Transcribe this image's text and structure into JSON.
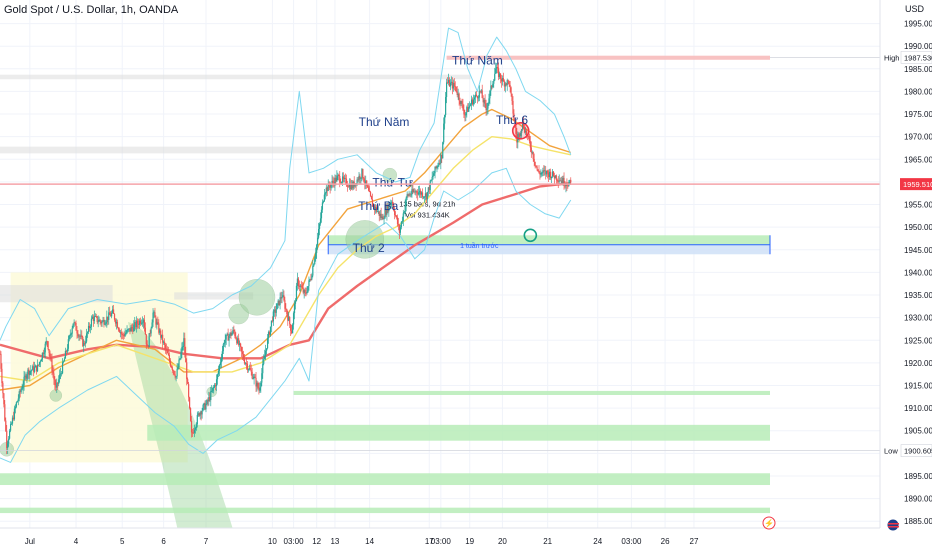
{
  "header": {
    "symbol_title": "Gold Spot / U.S. Dollar, 1h, OANDA",
    "currency": "USD"
  },
  "colors": {
    "up": "#26a69a",
    "down": "#ef5350",
    "ma_slow": "#ef6b6b",
    "ma_mid": "#f2a33c",
    "ma_fast": "#f5e36a",
    "bollinger": "#7fd8f0",
    "support_zone": "#b7ecb7",
    "grey_zone": "#dcdcdc",
    "range_box": "#cfe0f7",
    "price_tag": "#f23645"
  },
  "chart_data": {
    "type": "candlestick",
    "y_axis": {
      "ticks": [
        "1995.000",
        "1990.000",
        "1985.000",
        "1980.000",
        "1975.000",
        "1970.000",
        "1965.000",
        "1960.000",
        "1955.000",
        "1950.000",
        "1945.000",
        "1940.000",
        "1935.000",
        "1930.000",
        "1925.000",
        "1920.000",
        "1915.000",
        "1910.000",
        "1905.000",
        "1900.000",
        "1895.000",
        "1890.000",
        "1885.000"
      ],
      "ylim": [
        1883.5,
        1998
      ]
    },
    "x_axis": {
      "ticks": [
        "Jul",
        "4",
        "5",
        "6",
        "7",
        "10",
        "03:00",
        "12",
        "13",
        "14",
        "17",
        "03:00",
        "19",
        "20",
        "21",
        "24",
        "03:00",
        "26",
        "27"
      ],
      "tick_times": [
        0,
        48,
        96,
        139,
        183,
        252,
        274,
        298,
        317,
        353,
        415,
        427,
        457,
        491,
        538,
        590,
        625,
        660,
        690
      ],
      "xlim": [
        -31,
        769
      ]
    },
    "price_labels": {
      "high_label": "High",
      "high_value": "1987.530",
      "high": 1987.53,
      "low_label": "Low",
      "low_value": "1900.605",
      "low": 1900.605,
      "last_value": "1959.510",
      "last": 1959.51
    },
    "annotations": [
      {
        "text": "Thứ 2",
        "t": 352,
        "price": 1944.5
      },
      {
        "text": "Thứ Ba",
        "t": 362,
        "price": 1953.8
      },
      {
        "text": "Thứ Tư",
        "t": 377,
        "price": 1959.0
      },
      {
        "text": "Thứ Năm",
        "t": 368,
        "price": 1972.4
      },
      {
        "text": "Thứ Năm",
        "t": 465,
        "price": 1986.0
      },
      {
        "text": "Thứ 6",
        "t": 501,
        "price": 1972.8
      }
    ],
    "range_measure": {
      "line1": "135 bars, 9d 21h",
      "line2": "Vol 931.434K",
      "sub_label": "1 tuần trước",
      "t_start": 310,
      "t_end": 769,
      "price_top": 1948.2,
      "price_bottom": 1944.0
    },
    "zones": [
      {
        "kind": "support",
        "t_start": 274,
        "price_top": 1913.8,
        "price_bottom": 1912.9
      },
      {
        "kind": "support",
        "t_start": 122,
        "price_top": 1906.3,
        "price_bottom": 1902.8
      },
      {
        "kind": "support",
        "t_start": -31,
        "price_top": 1895.6,
        "price_bottom": 1893.0
      },
      {
        "kind": "support",
        "t_start": -31,
        "price_top": 1888.0,
        "price_bottom": 1886.8
      },
      {
        "kind": "resistance",
        "t_start": 433,
        "price_top": 1987.9,
        "price_bottom": 1987.0
      },
      {
        "kind": "grey",
        "t_start": -31,
        "t_end": 458,
        "price_top": 1983.7,
        "price_bottom": 1982.7
      },
      {
        "kind": "grey",
        "t_start": -31,
        "t_end": 458,
        "price_top": 1967.8,
        "price_bottom": 1966.3
      },
      {
        "kind": "grey",
        "t_start": -31,
        "t_end": 86,
        "price_top": 1937.2,
        "price_bottom": 1933.4
      },
      {
        "kind": "grey",
        "t_start": 150,
        "t_end": 232,
        "price_top": 1935.6,
        "price_bottom": 1934.0
      }
    ],
    "highlight_box": {
      "t_start": -20,
      "t_end": 164,
      "price_top": 1940.0,
      "price_bottom": 1898.0
    },
    "circles": [
      {
        "t": -24,
        "price": 1900.9,
        "r": 7
      },
      {
        "t": 27,
        "price": 1912.8,
        "r": 6
      },
      {
        "t": 189,
        "price": 1913.6,
        "r": 5
      },
      {
        "t": 217,
        "price": 1930.8,
        "r": 10
      },
      {
        "t": 236,
        "price": 1934.5,
        "r": 18
      },
      {
        "t": 348,
        "price": 1947.3,
        "r": 19
      },
      {
        "t": 374,
        "price": 1961.5,
        "r": 7
      }
    ],
    "marker_circles": [
      {
        "t": 510,
        "price": 1971.3,
        "r": 8,
        "color": "red"
      },
      {
        "t": 520,
        "price": 1948.2,
        "r": 6,
        "color": "green"
      }
    ],
    "candle_anchors": [
      [
        -31,
        1922
      ],
      [
        -24,
        1902
      ],
      [
        -14,
        1911
      ],
      [
        -3,
        1918
      ],
      [
        8,
        1919
      ],
      [
        18,
        1925
      ],
      [
        27,
        1914
      ],
      [
        35,
        1920
      ],
      [
        45,
        1929
      ],
      [
        56,
        1924
      ],
      [
        65,
        1930
      ],
      [
        75,
        1929
      ],
      [
        86,
        1931
      ],
      [
        96,
        1926
      ],
      [
        108,
        1928
      ],
      [
        118,
        1930
      ],
      [
        122,
        1923
      ],
      [
        128,
        1931
      ],
      [
        136,
        1926
      ],
      [
        146,
        1920
      ],
      [
        152,
        1917
      ],
      [
        160,
        1925
      ],
      [
        168,
        1904
      ],
      [
        176,
        1909
      ],
      [
        184,
        1911
      ],
      [
        194,
        1916
      ],
      [
        202,
        1925
      ],
      [
        212,
        1927
      ],
      [
        222,
        1921
      ],
      [
        232,
        1917
      ],
      [
        238,
        1914
      ],
      [
        246,
        1924
      ],
      [
        252,
        1930
      ],
      [
        262,
        1935
      ],
      [
        272,
        1927
      ],
      [
        278,
        1938
      ],
      [
        286,
        1935
      ],
      [
        292,
        1939
      ],
      [
        298,
        1946
      ],
      [
        306,
        1958
      ],
      [
        320,
        1961
      ],
      [
        335,
        1959
      ],
      [
        345,
        1962
      ],
      [
        356,
        1955
      ],
      [
        366,
        1952
      ],
      [
        376,
        1956
      ],
      [
        384,
        1949
      ],
      [
        392,
        1957
      ],
      [
        402,
        1958
      ],
      [
        412,
        1957
      ],
      [
        420,
        1962
      ],
      [
        428,
        1966
      ],
      [
        433,
        1982
      ],
      [
        442,
        1981
      ],
      [
        452,
        1975
      ],
      [
        460,
        1978
      ],
      [
        468,
        1980
      ],
      [
        474,
        1976
      ],
      [
        484,
        1985
      ],
      [
        492,
        1982
      ],
      [
        498,
        1982
      ],
      [
        506,
        1969
      ],
      [
        512,
        1973
      ],
      [
        520,
        1968
      ],
      [
        528,
        1962
      ],
      [
        538,
        1962
      ],
      [
        548,
        1961
      ],
      [
        555,
        1960
      ],
      [
        562,
        1959.5
      ]
    ],
    "series": [
      {
        "name": "",
        "style": "ma_slow",
        "points": [
          [
            -31,
            1924
          ],
          [
            20,
            1921
          ],
          [
            60,
            1923
          ],
          [
            90,
            1924
          ],
          [
            130,
            1923.5
          ],
          [
            160,
            1922
          ],
          [
            200,
            1921
          ],
          [
            240,
            1921
          ],
          [
            270,
            1924
          ],
          [
            290,
            1925
          ],
          [
            310,
            1932
          ],
          [
            340,
            1937
          ],
          [
            360,
            1940
          ],
          [
            400,
            1946
          ],
          [
            440,
            1951
          ],
          [
            470,
            1955
          ],
          [
            500,
            1957
          ],
          [
            530,
            1959
          ],
          [
            560,
            1959.7
          ],
          [
            562,
            1959.6
          ]
        ]
      },
      {
        "name": "",
        "style": "ma_mid",
        "points": [
          [
            -31,
            1914
          ],
          [
            0,
            1915
          ],
          [
            30,
            1919
          ],
          [
            60,
            1922
          ],
          [
            90,
            1925
          ],
          [
            130,
            1923
          ],
          [
            160,
            1918
          ],
          [
            190,
            1918
          ],
          [
            220,
            1921
          ],
          [
            240,
            1924
          ],
          [
            260,
            1928
          ],
          [
            280,
            1935
          ],
          [
            300,
            1946
          ],
          [
            330,
            1954
          ],
          [
            360,
            1956
          ],
          [
            390,
            1958
          ],
          [
            410,
            1962
          ],
          [
            430,
            1967
          ],
          [
            450,
            1972
          ],
          [
            470,
            1975
          ],
          [
            480,
            1976
          ],
          [
            500,
            1974
          ],
          [
            520,
            1971
          ],
          [
            540,
            1968
          ],
          [
            562,
            1966.5
          ]
        ]
      },
      {
        "name": "",
        "style": "ma_fast",
        "points": [
          [
            -31,
            1917
          ],
          [
            0,
            1916
          ],
          [
            30,
            1920
          ],
          [
            60,
            1922
          ],
          [
            90,
            1924
          ],
          [
            130,
            1921
          ],
          [
            170,
            1918
          ],
          [
            210,
            1918
          ],
          [
            240,
            1920
          ],
          [
            270,
            1924
          ],
          [
            300,
            1935
          ],
          [
            320,
            1941
          ],
          [
            340,
            1945
          ],
          [
            360,
            1948
          ],
          [
            380,
            1950
          ],
          [
            400,
            1953
          ],
          [
            420,
            1958
          ],
          [
            440,
            1963
          ],
          [
            460,
            1967
          ],
          [
            480,
            1970
          ],
          [
            500,
            1969.5
          ],
          [
            520,
            1968
          ],
          [
            540,
            1967
          ],
          [
            562,
            1966
          ]
        ]
      },
      {
        "name": "",
        "style": "bollinger",
        "points": [
          [
            -31,
            1925
          ],
          [
            -25,
            1928
          ],
          [
            -10,
            1934
          ],
          [
            5,
            1932
          ],
          [
            20,
            1926
          ],
          [
            40,
            1932
          ],
          [
            70,
            1934
          ],
          [
            100,
            1933
          ],
          [
            130,
            1934
          ],
          [
            150,
            1933
          ],
          [
            170,
            1931
          ],
          [
            190,
            1932
          ],
          [
            210,
            1935
          ],
          [
            230,
            1937
          ],
          [
            250,
            1941
          ],
          [
            265,
            1947
          ],
          [
            270,
            1963
          ],
          [
            280,
            1980
          ],
          [
            290,
            1962
          ],
          [
            305,
            1963
          ],
          [
            320,
            1965
          ],
          [
            340,
            1966
          ],
          [
            360,
            1962
          ],
          [
            380,
            1960
          ],
          [
            395,
            1961
          ],
          [
            405,
            1967
          ],
          [
            420,
            1973
          ],
          [
            435,
            1994
          ],
          [
            445,
            1993
          ],
          [
            455,
            1985
          ],
          [
            465,
            1980
          ],
          [
            475,
            1988
          ],
          [
            485,
            1992
          ],
          [
            495,
            1989
          ],
          [
            505,
            1985
          ],
          [
            515,
            1980
          ],
          [
            530,
            1978
          ],
          [
            545,
            1975
          ],
          [
            555,
            1970
          ],
          [
            562,
            1966
          ]
        ]
      },
      {
        "name": "",
        "style": "bollinger",
        "points": [
          [
            -31,
            1899
          ],
          [
            -20,
            1898
          ],
          [
            -5,
            1904
          ],
          [
            10,
            1907
          ],
          [
            30,
            1910
          ],
          [
            60,
            1914
          ],
          [
            90,
            1917
          ],
          [
            110,
            1913
          ],
          [
            130,
            1909
          ],
          [
            150,
            1906
          ],
          [
            165,
            1902
          ],
          [
            180,
            1900
          ],
          [
            195,
            1903
          ],
          [
            215,
            1905
          ],
          [
            235,
            1908
          ],
          [
            250,
            1912
          ],
          [
            265,
            1916
          ],
          [
            280,
            1921
          ],
          [
            290,
            1916
          ],
          [
            300,
            1936
          ],
          [
            320,
            1944
          ],
          [
            340,
            1947
          ],
          [
            355,
            1949
          ],
          [
            370,
            1951
          ],
          [
            385,
            1948
          ],
          [
            400,
            1943
          ],
          [
            410,
            1945
          ],
          [
            420,
            1952
          ],
          [
            430,
            1958
          ],
          [
            445,
            1956
          ],
          [
            460,
            1958
          ],
          [
            480,
            1962
          ],
          [
            495,
            1963
          ],
          [
            505,
            1958
          ],
          [
            520,
            1955
          ],
          [
            535,
            1953
          ],
          [
            550,
            1952
          ],
          [
            562,
            1956
          ]
        ]
      }
    ]
  },
  "footer": {
    "lightning_glyph": "⚡"
  }
}
